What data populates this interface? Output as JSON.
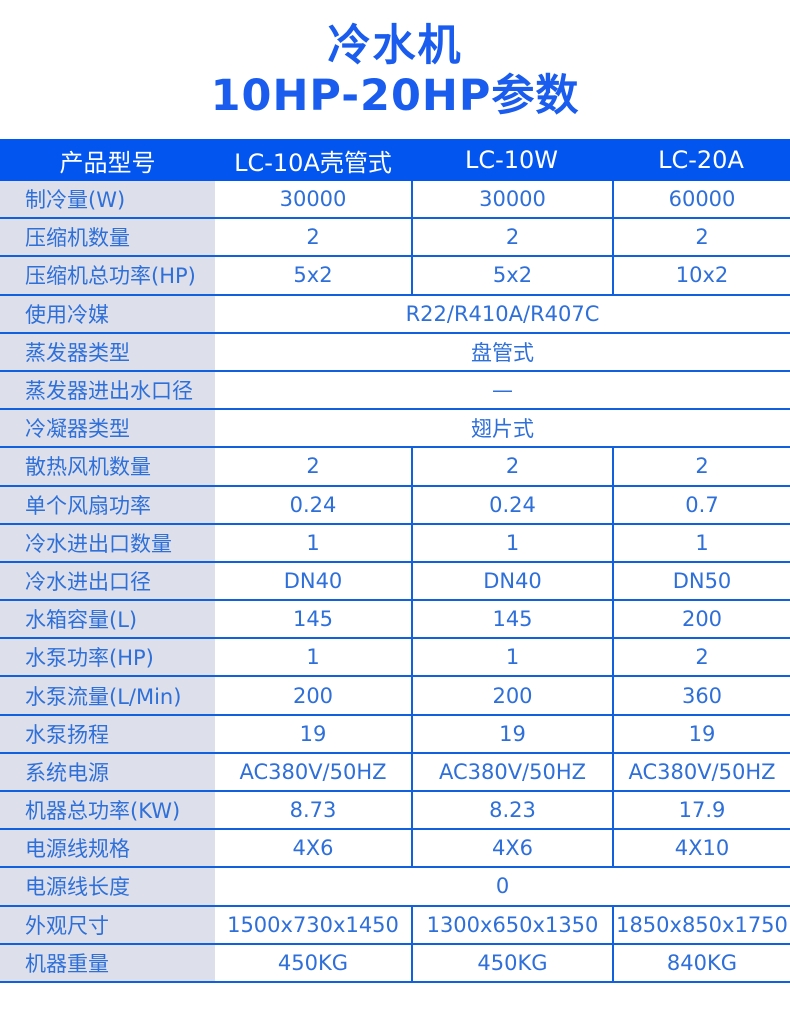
{
  "title": {
    "line1": "冷水机",
    "line2": "10HP-20HP参数"
  },
  "colors": {
    "title_text": "#195cee",
    "header_bg": "#0355f0",
    "header_text": "#ffffff",
    "label_bg": "#dde0ea",
    "cell_text": "#2e6fd9",
    "grid_line": "#1160dd"
  },
  "table": {
    "headers": [
      "产品型号",
      "LC-10A壳管式",
      "LC-10W",
      "LC-20A"
    ],
    "rows": [
      {
        "label": "制冷量(W)",
        "merged": false,
        "values": [
          "30000",
          "30000",
          "60000"
        ]
      },
      {
        "label": "压缩机数量",
        "merged": false,
        "values": [
          "2",
          "2",
          "2"
        ]
      },
      {
        "label": "压缩机总功率(HP)",
        "merged": false,
        "values": [
          "5x2",
          "5x2",
          "10x2"
        ]
      },
      {
        "label": "使用冷媒",
        "merged": true,
        "values": [
          "R22/R410A/R407C"
        ]
      },
      {
        "label": "蒸发器类型",
        "merged": true,
        "values": [
          "盘管式"
        ]
      },
      {
        "label": "蒸发器进出水口径",
        "merged": true,
        "values": [
          "—"
        ]
      },
      {
        "label": "冷凝器类型",
        "merged": true,
        "values": [
          "翅片式"
        ]
      },
      {
        "label": "散热风机数量",
        "merged": false,
        "values": [
          "2",
          "2",
          "2"
        ]
      },
      {
        "label": "单个风扇功率",
        "merged": false,
        "values": [
          "0.24",
          "0.24",
          "0.7"
        ]
      },
      {
        "label": "冷水进出口数量",
        "merged": false,
        "values": [
          "1",
          "1",
          "1"
        ]
      },
      {
        "label": "冷水进出口径",
        "merged": false,
        "values": [
          "DN40",
          "DN40",
          "DN50"
        ]
      },
      {
        "label": "水箱容量(L)",
        "merged": false,
        "values": [
          "145",
          "145",
          "200"
        ]
      },
      {
        "label": "水泵功率(HP)",
        "merged": false,
        "values": [
          "1",
          "1",
          "2"
        ]
      },
      {
        "label": "水泵流量(L/Min)",
        "merged": false,
        "values": [
          "200",
          "200",
          "360"
        ]
      },
      {
        "label": "水泵扬程",
        "merged": false,
        "values": [
          "19",
          "19",
          "19"
        ]
      },
      {
        "label": "系统电源",
        "merged": false,
        "values": [
          "AC380V/50HZ",
          "AC380V/50HZ",
          "AC380V/50HZ"
        ]
      },
      {
        "label": "机器总功率(KW)",
        "merged": false,
        "values": [
          "8.73",
          "8.23",
          "17.9"
        ]
      },
      {
        "label": "电源线规格",
        "merged": false,
        "values": [
          "4X6",
          "4X6",
          "4X10"
        ]
      },
      {
        "label": "电源线长度",
        "merged": true,
        "values": [
          "0"
        ]
      },
      {
        "label": "外观尺寸",
        "merged": false,
        "values": [
          "1500x730x1450",
          "1300x650x1350",
          "1850x850x1750"
        ]
      },
      {
        "label": "机器重量",
        "merged": false,
        "values": [
          "450KG",
          "450KG",
          "840KG"
        ]
      }
    ]
  }
}
